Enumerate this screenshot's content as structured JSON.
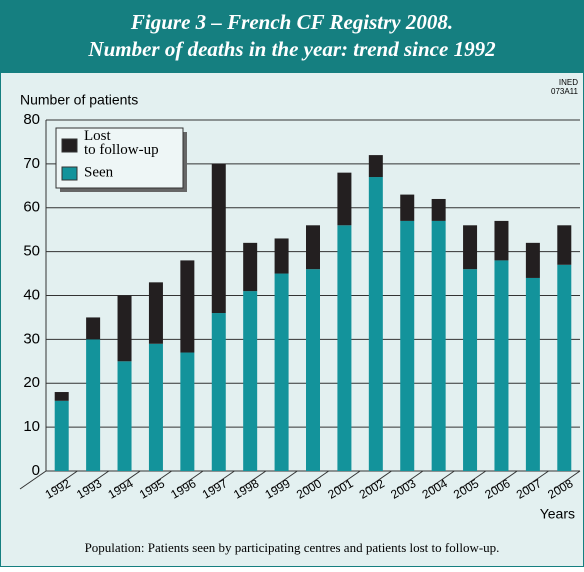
{
  "title": "Figure 3 – French CF Registry 2008.",
  "subtitle": "Number of deaths in the year: trend since 1992",
  "source_code": [
    "INED",
    "073A11"
  ],
  "caption": "Population: Patients seen by participating centres and patients lost to follow-up.",
  "chart_data": {
    "type": "stacked_bar",
    "y_label": "Number of patients",
    "x_label": "Years",
    "categories": [
      "1992",
      "1993",
      "1994",
      "1995",
      "1996",
      "1997",
      "1998",
      "1999",
      "2000",
      "2001",
      "2002",
      "2003",
      "2004",
      "2005",
      "2006",
      "2007",
      "2008"
    ],
    "series": [
      {
        "name": "Seen",
        "color": "#13939b",
        "values": [
          16,
          30,
          25,
          29,
          27,
          36,
          41,
          45,
          46,
          56,
          67,
          57,
          57,
          46,
          48,
          44,
          47
        ]
      },
      {
        "name": "Lost to follow-up",
        "color": "#231f20",
        "values": [
          2,
          5,
          15,
          14,
          21,
          34,
          11,
          8,
          10,
          12,
          5,
          6,
          5,
          10,
          9,
          8,
          9
        ]
      }
    ],
    "ylim": [
      0,
      80
    ],
    "yticks": [
      0,
      10,
      20,
      30,
      40,
      50,
      60,
      70,
      80
    ],
    "grid": true,
    "legend": "upper left"
  }
}
